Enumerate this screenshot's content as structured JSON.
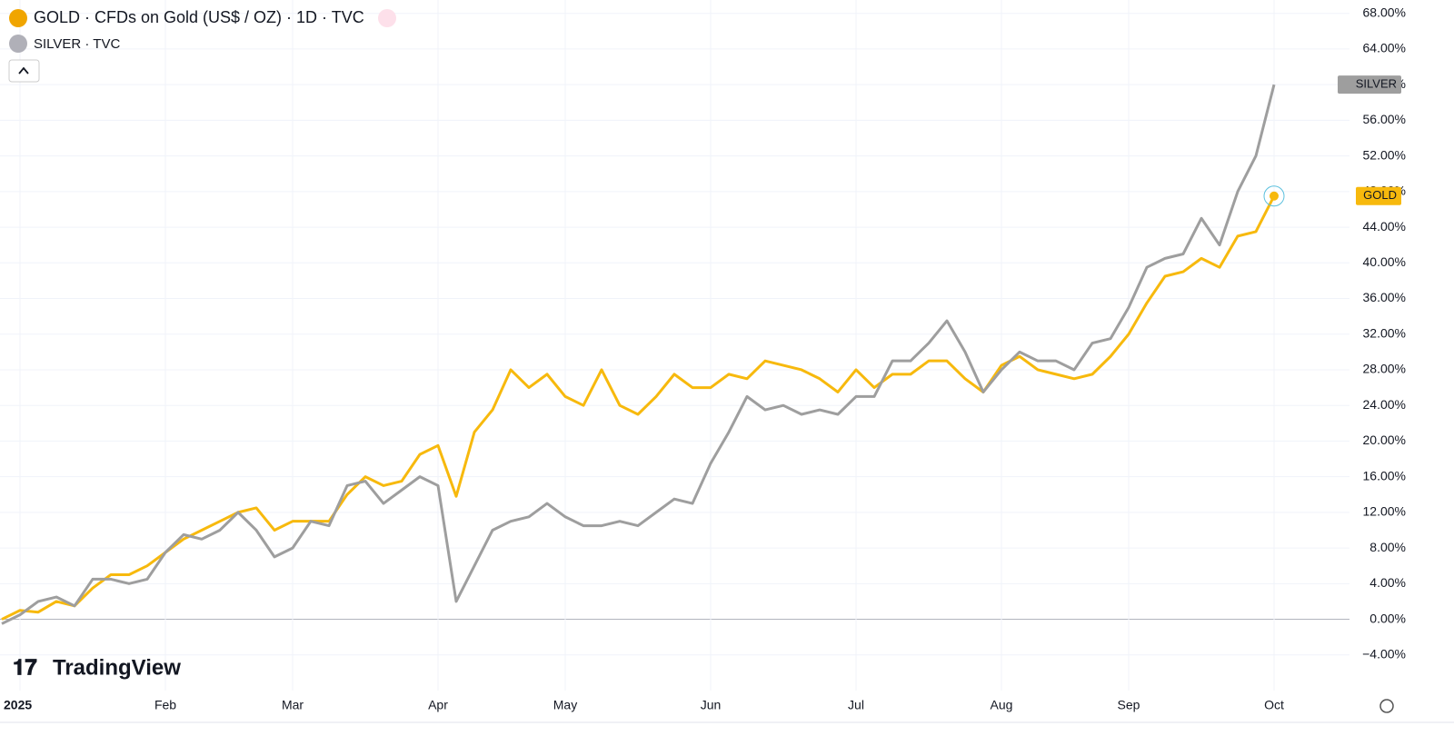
{
  "chart_data": {
    "type": "line",
    "title": "GOLD · CFDs on Gold (US$ / OZ) · 1D · TVC",
    "subtitle": "SILVER · TVC",
    "brand": "TradingView",
    "categories": [
      null,
      "2025",
      null,
      null,
      null,
      null,
      null,
      null,
      null,
      "Feb",
      null,
      null,
      null,
      null,
      null,
      null,
      "Mar",
      null,
      null,
      null,
      null,
      null,
      null,
      null,
      "Apr",
      null,
      null,
      null,
      null,
      null,
      null,
      "May",
      null,
      null,
      null,
      null,
      null,
      null,
      null,
      "Jun",
      null,
      null,
      null,
      null,
      null,
      null,
      null,
      "Jul",
      null,
      null,
      null,
      null,
      null,
      null,
      null,
      "Aug",
      null,
      null,
      null,
      null,
      null,
      null,
      "Sep",
      null,
      null,
      null,
      null,
      null,
      null,
      null,
      "Oct"
    ],
    "series": [
      {
        "name": "GOLD",
        "color": "#f7b90d",
        "values": [
          0,
          1,
          0.8,
          2,
          1.5,
          3.5,
          5,
          5,
          6,
          7.5,
          9,
          10,
          11,
          12,
          12.5,
          10,
          11,
          11,
          11,
          14,
          16,
          15,
          15.5,
          18.5,
          19.5,
          13.8,
          21,
          23.5,
          28,
          26,
          27.5,
          25,
          24,
          28,
          24,
          23,
          25,
          27.5,
          26,
          26,
          27.5,
          27,
          29,
          28.5,
          28,
          27,
          25.5,
          28,
          26,
          27.5,
          27.5,
          29,
          29,
          27,
          25.5,
          28.5,
          29.5,
          28,
          27.5,
          27,
          27.5,
          29.5,
          32,
          35.5,
          38.5,
          39,
          40.5,
          39.5,
          43,
          43.5,
          47.5
        ]
      },
      {
        "name": "SILVER",
        "color": "#9e9e9e",
        "values": [
          -0.5,
          0.5,
          2,
          2.5,
          1.5,
          4.5,
          4.5,
          4,
          4.5,
          7.5,
          9.5,
          9,
          10,
          12,
          10,
          7,
          8,
          11,
          10.5,
          15,
          15.5,
          13,
          14.5,
          16,
          15,
          2,
          6,
          10,
          11,
          11.5,
          13,
          11.5,
          10.5,
          10.5,
          11,
          10.5,
          12,
          13.5,
          13,
          17.5,
          21,
          25,
          23.5,
          24,
          23,
          23.5,
          23,
          25,
          25,
          29,
          29,
          31,
          33.5,
          30,
          25.5,
          28,
          30,
          29,
          29,
          28,
          31,
          31.5,
          35,
          39.5,
          40.5,
          41,
          45,
          42,
          48,
          52,
          60
        ]
      }
    ],
    "ylim": [
      -8,
      69.5
    ],
    "yticks": [
      {
        "value": -4,
        "label": "−4.00%"
      },
      {
        "value": 0,
        "label": "0.00%"
      },
      {
        "value": 4,
        "label": "4.00%"
      },
      {
        "value": 8,
        "label": "8.00%"
      },
      {
        "value": 12,
        "label": "12.00%"
      },
      {
        "value": 16,
        "label": "16.00%"
      },
      {
        "value": 20,
        "label": "20.00%"
      },
      {
        "value": 24,
        "label": "24.00%"
      },
      {
        "value": 28,
        "label": "28.00%"
      },
      {
        "value": 32,
        "label": "32.00%"
      },
      {
        "value": 36,
        "label": "36.00%"
      },
      {
        "value": 40,
        "label": "40.00%"
      },
      {
        "value": 44,
        "label": "44.00%"
      },
      {
        "value": 48,
        "label": "48.00%"
      },
      {
        "value": 52,
        "label": "52.00%"
      },
      {
        "value": 56,
        "label": "56.00%"
      },
      {
        "value": 60,
        "label": "60.00%"
      },
      {
        "value": 64,
        "label": "64.00%"
      },
      {
        "value": 68,
        "label": "68.00%"
      }
    ],
    "grid": true
  }
}
